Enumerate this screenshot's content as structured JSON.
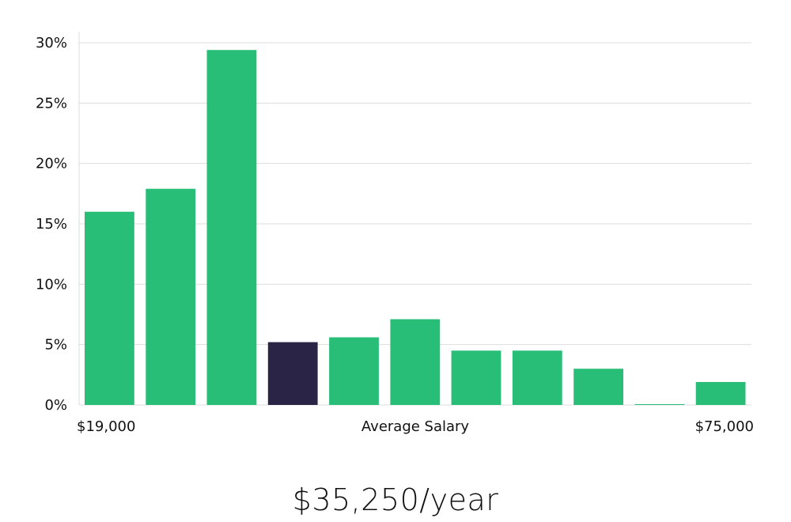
{
  "chart_data": {
    "type": "bar",
    "title": "",
    "xlabel": "Average Salary",
    "ylabel": "",
    "x_range_labels": {
      "min": "$19,000",
      "max": "$75,000"
    },
    "ylim": [
      0,
      30
    ],
    "yticks": [
      0,
      5,
      10,
      15,
      20,
      25,
      30
    ],
    "ytick_labels": [
      "0%",
      "5%",
      "10%",
      "15%",
      "20%",
      "25%",
      "30%"
    ],
    "grid": true,
    "values": [
      16.0,
      17.9,
      29.4,
      5.2,
      5.6,
      7.1,
      4.5,
      4.5,
      3.0,
      0.05,
      1.9
    ],
    "highlight_index": 3,
    "colors": {
      "bar": "#29be78",
      "highlight": "#2a2547",
      "grid": "#dddddd"
    }
  },
  "summary": {
    "salary": "$35,250/year"
  }
}
